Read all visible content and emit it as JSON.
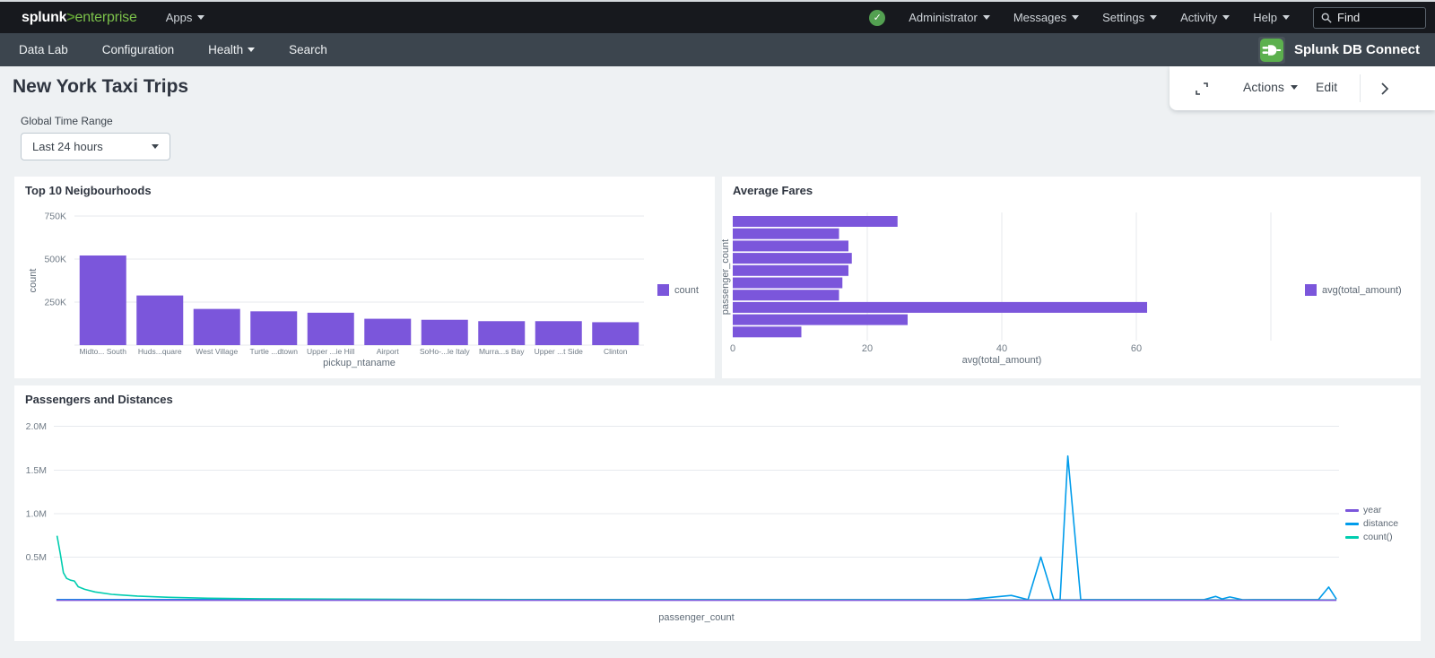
{
  "topbar": {
    "logo_primary": "splunk",
    "logo_separator": ">",
    "logo_secondary": "enterprise",
    "apps_label": "Apps",
    "menus": [
      "Administrator",
      "Messages",
      "Settings",
      "Activity",
      "Help"
    ],
    "find_placeholder": "Find"
  },
  "appbar": {
    "items": [
      {
        "label": "Data Lab"
      },
      {
        "label": "Configuration"
      },
      {
        "label": "Health"
      },
      {
        "label": "Search"
      }
    ],
    "app_name": "Splunk DB Connect"
  },
  "page": {
    "title": "New York Taxi Trips",
    "time_range_label": "Global Time Range",
    "time_range_value": "Last 24 hours",
    "actions_label": "Actions",
    "edit_label": "Edit"
  },
  "chart_data": [
    {
      "type": "bar",
      "title": "Top 10 Neigbourhoods",
      "xlabel": "pickup_ntaname",
      "ylabel": "count",
      "categories": [
        "Midto... South",
        "Huds...quare",
        "West Village",
        "Turtle ...dtown",
        "Upper ...ie Hill",
        "Airport",
        "SoHo-...le Italy",
        "Murra...s Bay",
        "Upper ...t Side",
        "Clinton"
      ],
      "series": [
        {
          "name": "count",
          "color": "#7b56db",
          "values": [
            520000,
            288000,
            210000,
            196000,
            188000,
            153000,
            147000,
            139000,
            139000,
            133000
          ]
        }
      ],
      "yticks": [
        {
          "value": 250000,
          "label": "250K"
        },
        {
          "value": 500000,
          "label": "500K"
        },
        {
          "value": 750000,
          "label": "750K"
        }
      ],
      "ylim": [
        0,
        780000
      ],
      "grid": "horizontal",
      "legend_position": "right"
    },
    {
      "type": "hbar",
      "title": "Average Fares",
      "xlabel": "avg(total_amount)",
      "ylabel": "passenger_count",
      "series": [
        {
          "name": "avg(total_amount)",
          "color": "#7b56db",
          "values": [
            24.5,
            15.8,
            17.2,
            17.7,
            17.2,
            16.3,
            15.8,
            61.6,
            26.0,
            10.2
          ]
        }
      ],
      "xticks": [
        {
          "value": 0,
          "label": "0"
        },
        {
          "value": 20,
          "label": "20"
        },
        {
          "value": 40,
          "label": "40"
        },
        {
          "value": 60,
          "label": "60"
        },
        {
          "value": 80,
          "label": ""
        }
      ],
      "xlim": [
        0,
        80
      ],
      "grid": "vertical",
      "legend_position": "right"
    },
    {
      "type": "line",
      "title": "Passengers and Distances",
      "xlabel": "passenger_count",
      "ylabel": "",
      "yticks": [
        {
          "value": 500000,
          "label": "0.5M"
        },
        {
          "value": 1000000,
          "label": "1.0M"
        },
        {
          "value": 1500000,
          "label": "1.5M"
        },
        {
          "value": 2000000,
          "label": "2.0M"
        }
      ],
      "ylim": [
        0,
        2100000
      ],
      "xlim": [
        0,
        100
      ],
      "grid": "horizontal",
      "legend_position": "right",
      "series": [
        {
          "name": "year",
          "color": "#7b56db",
          "points": [
            [
              0.2,
              4000
            ],
            [
              99.8,
              4000
            ]
          ]
        },
        {
          "name": "distance",
          "color": "#009ceb",
          "points": [
            [
              0.2,
              12000
            ],
            [
              71,
              11000
            ],
            [
              74.5,
              60000
            ],
            [
              75.8,
              11000
            ],
            [
              76.8,
              500000
            ],
            [
              77.8,
              11000
            ],
            [
              78.3,
              14000
            ],
            [
              78.9,
              1660000
            ],
            [
              79.9,
              11000
            ],
            [
              89.5,
              11000
            ],
            [
              90.4,
              48000
            ],
            [
              90.9,
              20000
            ],
            [
              91.5,
              42000
            ],
            [
              92.5,
              10000
            ],
            [
              98.4,
              12000
            ],
            [
              99.2,
              155000
            ],
            [
              99.8,
              18000
            ]
          ]
        },
        {
          "name": "count()",
          "color": "#00cdaf",
          "points": [
            [
              0.25,
              745000
            ],
            [
              0.5,
              540000
            ],
            [
              0.75,
              320000
            ],
            [
              1.0,
              255000
            ],
            [
              1.3,
              235000
            ],
            [
              1.6,
              225000
            ],
            [
              1.9,
              160000
            ],
            [
              2.4,
              130000
            ],
            [
              3.2,
              100000
            ],
            [
              4.5,
              72000
            ],
            [
              6.5,
              52000
            ],
            [
              9,
              38000
            ],
            [
              12,
              28000
            ],
            [
              16,
              22000
            ],
            [
              22,
              17000
            ],
            [
              30,
              13000
            ],
            [
              45,
              10000
            ],
            [
              60,
              9000
            ],
            [
              99.8,
              8000
            ]
          ]
        }
      ]
    }
  ]
}
